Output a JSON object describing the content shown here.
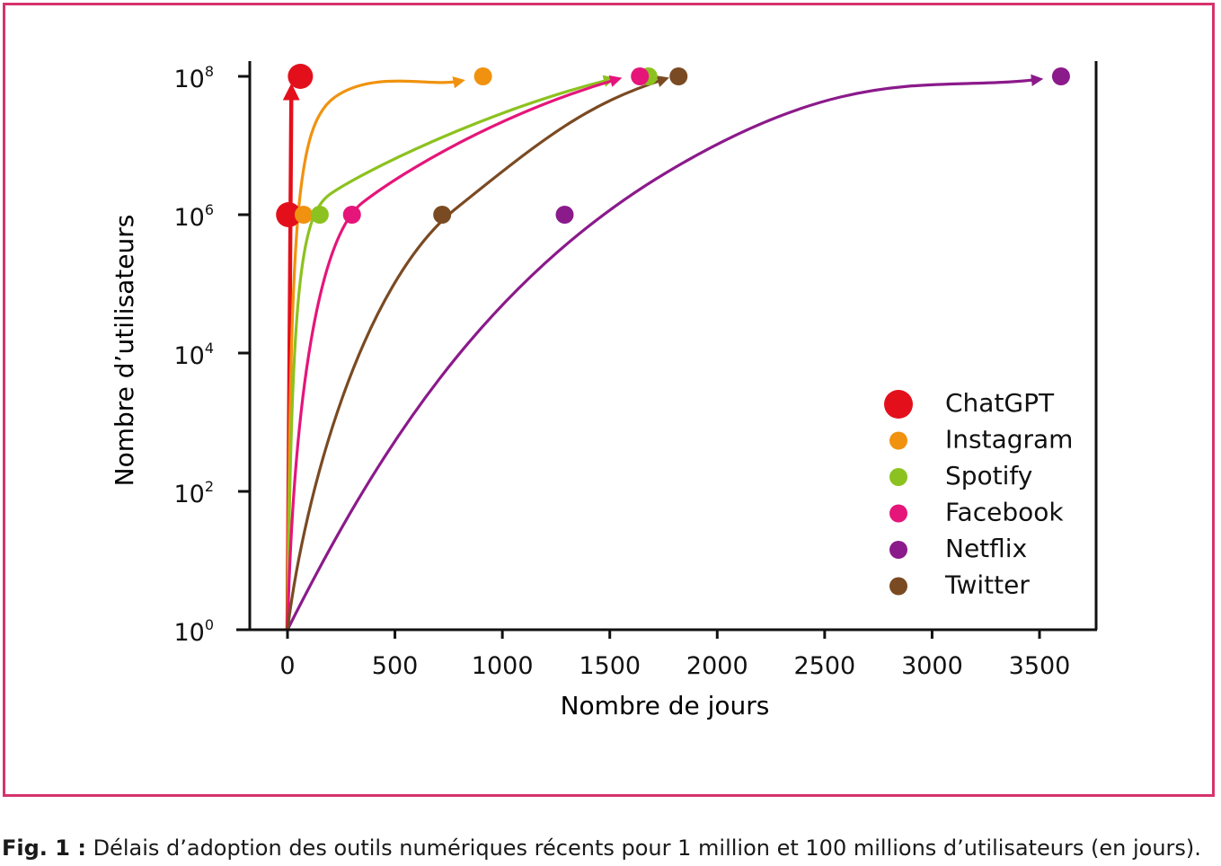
{
  "caption": {
    "label": "Fig. 1 :",
    "text": "Délais d’adoption des outils numériques récents pour 1 million et 100 millions d’utilisateurs (en jours)."
  },
  "chart_data": {
    "type": "scatter",
    "xlabel": "Nombre de jours",
    "ylabel": "Nombre d’utilisateurs",
    "xlim": [
      0,
      3700
    ],
    "ylim": [
      1,
      100000000
    ],
    "yscale": "log",
    "x_ticks": [
      0,
      500,
      1000,
      1500,
      2000,
      2500,
      3000,
      3500
    ],
    "y_ticks": [
      {
        "value": 1,
        "base": "10",
        "exp": "0"
      },
      {
        "value": 100,
        "base": "10",
        "exp": "2"
      },
      {
        "value": 10000,
        "base": "10",
        "exp": "4"
      },
      {
        "value": 1000000,
        "base": "10",
        "exp": "6"
      },
      {
        "value": 100000000,
        "base": "10",
        "exp": "8"
      }
    ],
    "legend_position": "bottom-right",
    "series": [
      {
        "name": "ChatGPT",
        "color": "#e3101b",
        "points": [
          [
            5,
            1000000
          ],
          [
            60,
            100000000
          ]
        ]
      },
      {
        "name": "Instagram",
        "color": "#f0920f",
        "points": [
          [
            75,
            1000000
          ],
          [
            910,
            100000000
          ]
        ]
      },
      {
        "name": "Spotify",
        "color": "#8cc21f",
        "points": [
          [
            150,
            1000000
          ],
          [
            1680,
            100000000
          ]
        ]
      },
      {
        "name": "Facebook",
        "color": "#e5157a",
        "points": [
          [
            300,
            1000000
          ],
          [
            1640,
            100000000
          ]
        ]
      },
      {
        "name": "Netflix",
        "color": "#8b1a8b",
        "points": [
          [
            1290,
            1000000
          ],
          [
            3600,
            100000000
          ]
        ]
      },
      {
        "name": "Twitter",
        "color": "#7a4a22",
        "points": [
          [
            720,
            1000000
          ],
          [
            1820,
            100000000
          ]
        ]
      }
    ]
  }
}
